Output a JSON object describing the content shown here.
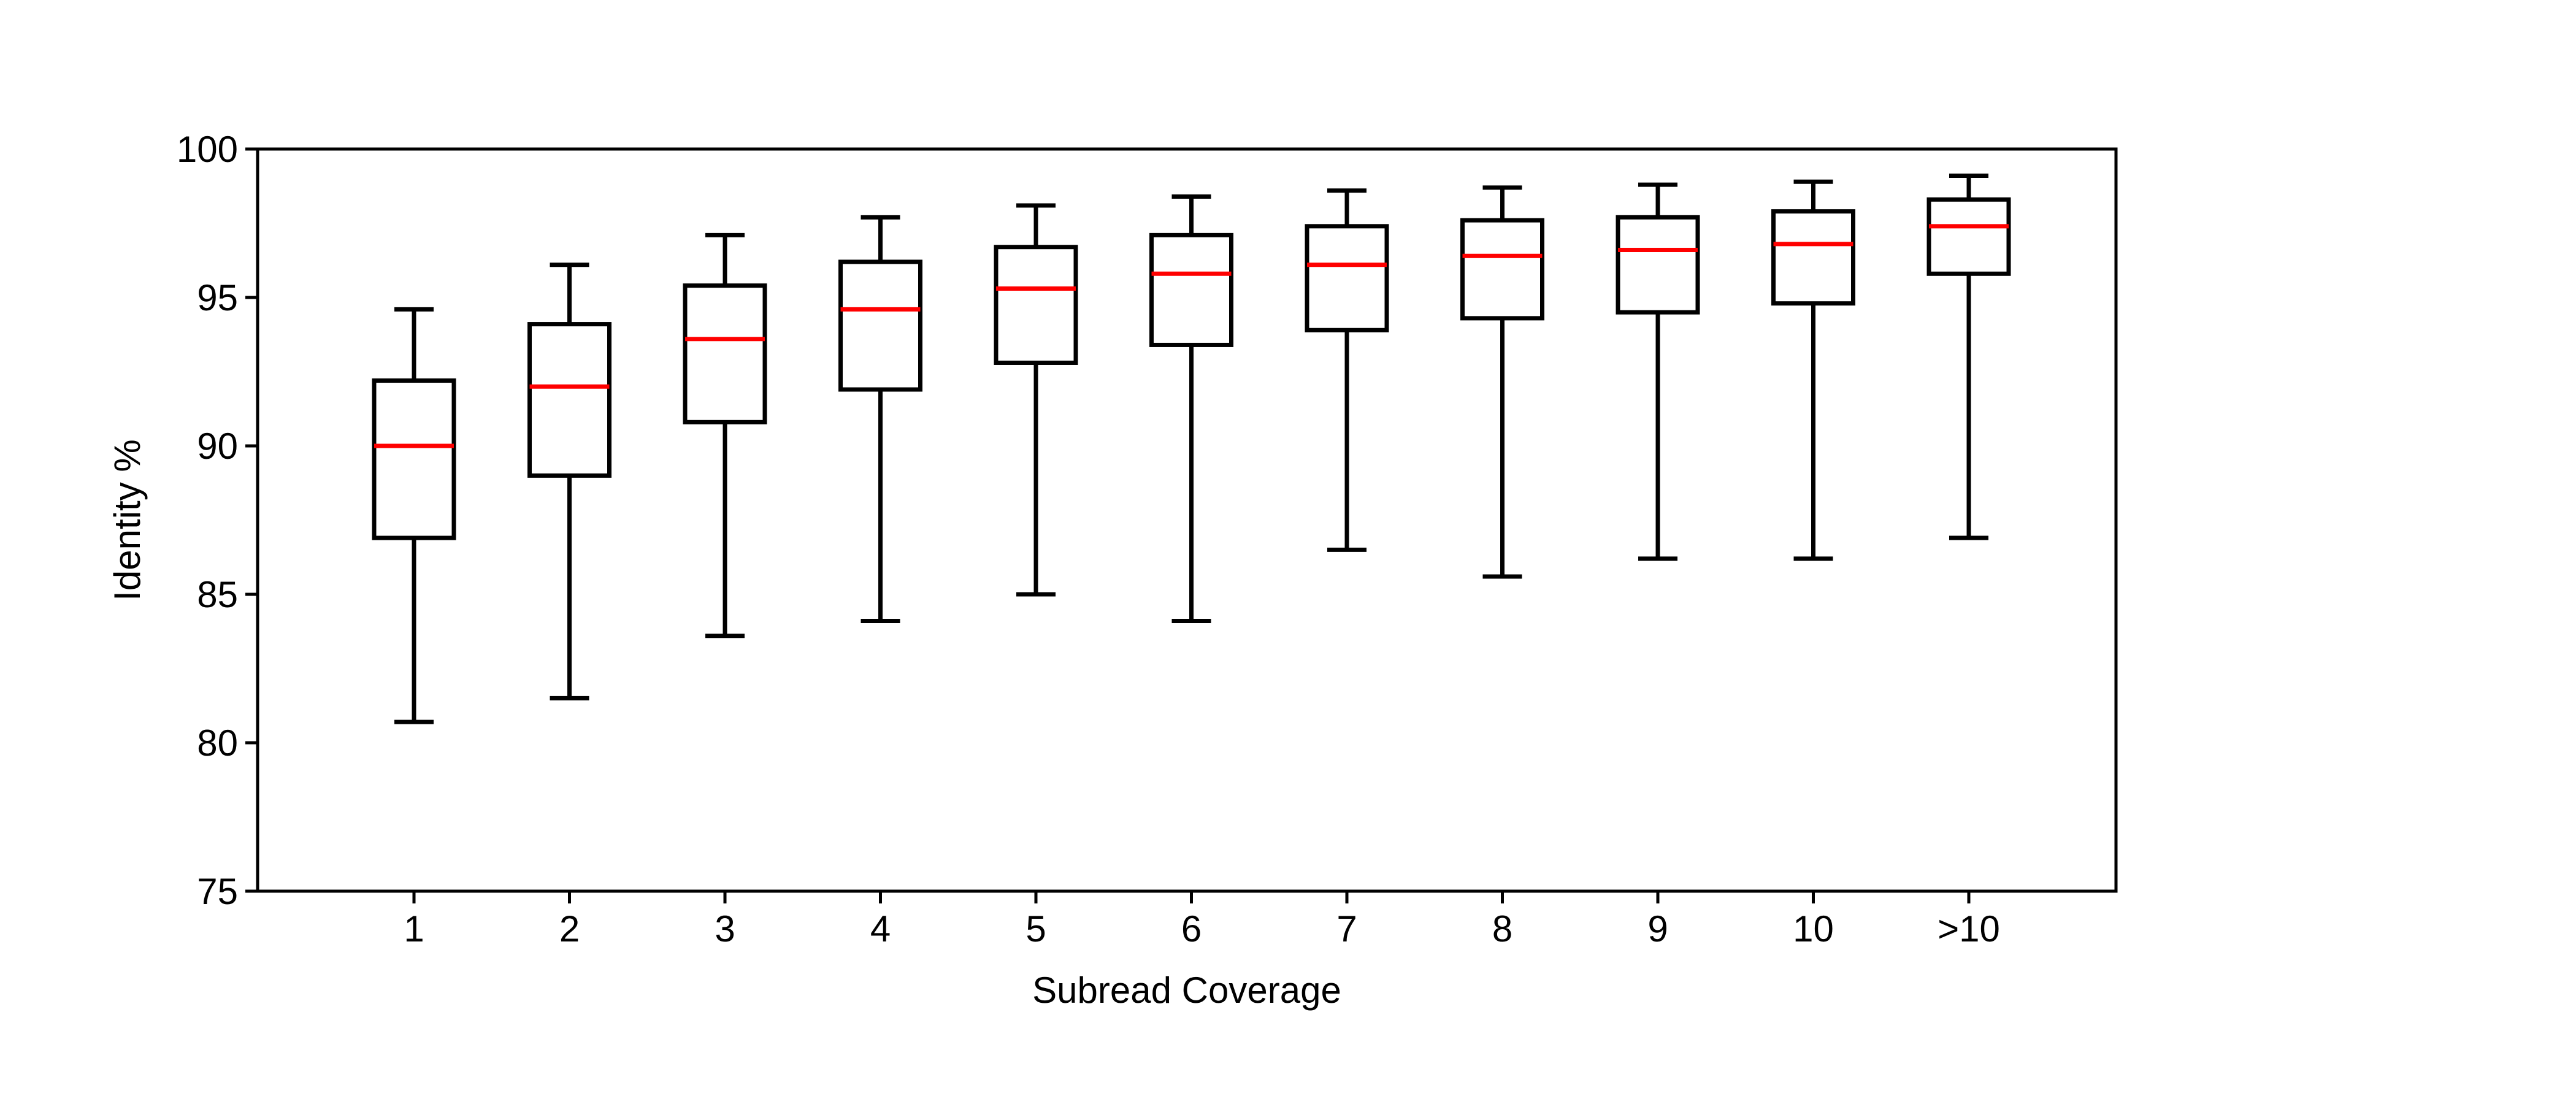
{
  "chart_data": {
    "type": "box",
    "title": "",
    "xlabel": "Subread Coverage",
    "ylabel": "Identity %",
    "ylim": [
      75,
      100
    ],
    "yticks": [
      75,
      80,
      85,
      90,
      95,
      100
    ],
    "grid": false,
    "legend": "none",
    "categories": [
      "1",
      "2",
      "3",
      "4",
      "5",
      "6",
      "7",
      "8",
      "9",
      "10",
      ">10"
    ],
    "boxes": [
      {
        "category": "1",
        "whisker_low": 80.7,
        "q1": 86.9,
        "median": 90.0,
        "q3": 92.2,
        "whisker_high": 94.6
      },
      {
        "category": "2",
        "whisker_low": 81.5,
        "q1": 89.0,
        "median": 92.0,
        "q3": 94.1,
        "whisker_high": 96.1
      },
      {
        "category": "3",
        "whisker_low": 83.6,
        "q1": 90.8,
        "median": 93.6,
        "q3": 95.4,
        "whisker_high": 97.1
      },
      {
        "category": "4",
        "whisker_low": 84.1,
        "q1": 91.9,
        "median": 94.6,
        "q3": 96.2,
        "whisker_high": 97.7
      },
      {
        "category": "5",
        "whisker_low": 85.0,
        "q1": 92.8,
        "median": 95.3,
        "q3": 96.7,
        "whisker_high": 98.1
      },
      {
        "category": "6",
        "whisker_low": 84.1,
        "q1": 93.4,
        "median": 95.8,
        "q3": 97.1,
        "whisker_high": 98.4
      },
      {
        "category": "7",
        "whisker_low": 86.5,
        "q1": 93.9,
        "median": 96.1,
        "q3": 97.4,
        "whisker_high": 98.6
      },
      {
        "category": "8",
        "whisker_low": 85.6,
        "q1": 94.3,
        "median": 96.4,
        "q3": 97.6,
        "whisker_high": 98.7
      },
      {
        "category": "9",
        "whisker_low": 86.2,
        "q1": 94.5,
        "median": 96.6,
        "q3": 97.7,
        "whisker_high": 98.8
      },
      {
        "category": "10",
        "whisker_low": 86.2,
        "q1": 94.8,
        "median": 96.8,
        "q3": 97.9,
        "whisker_high": 98.9
      },
      {
        "category": ">10",
        "whisker_low": 86.9,
        "q1": 95.8,
        "median": 97.4,
        "q3": 98.3,
        "whisker_high": 99.1
      }
    ],
    "colors": {
      "box": "#000000",
      "median": "#ff0000",
      "axis": "#000000"
    }
  }
}
